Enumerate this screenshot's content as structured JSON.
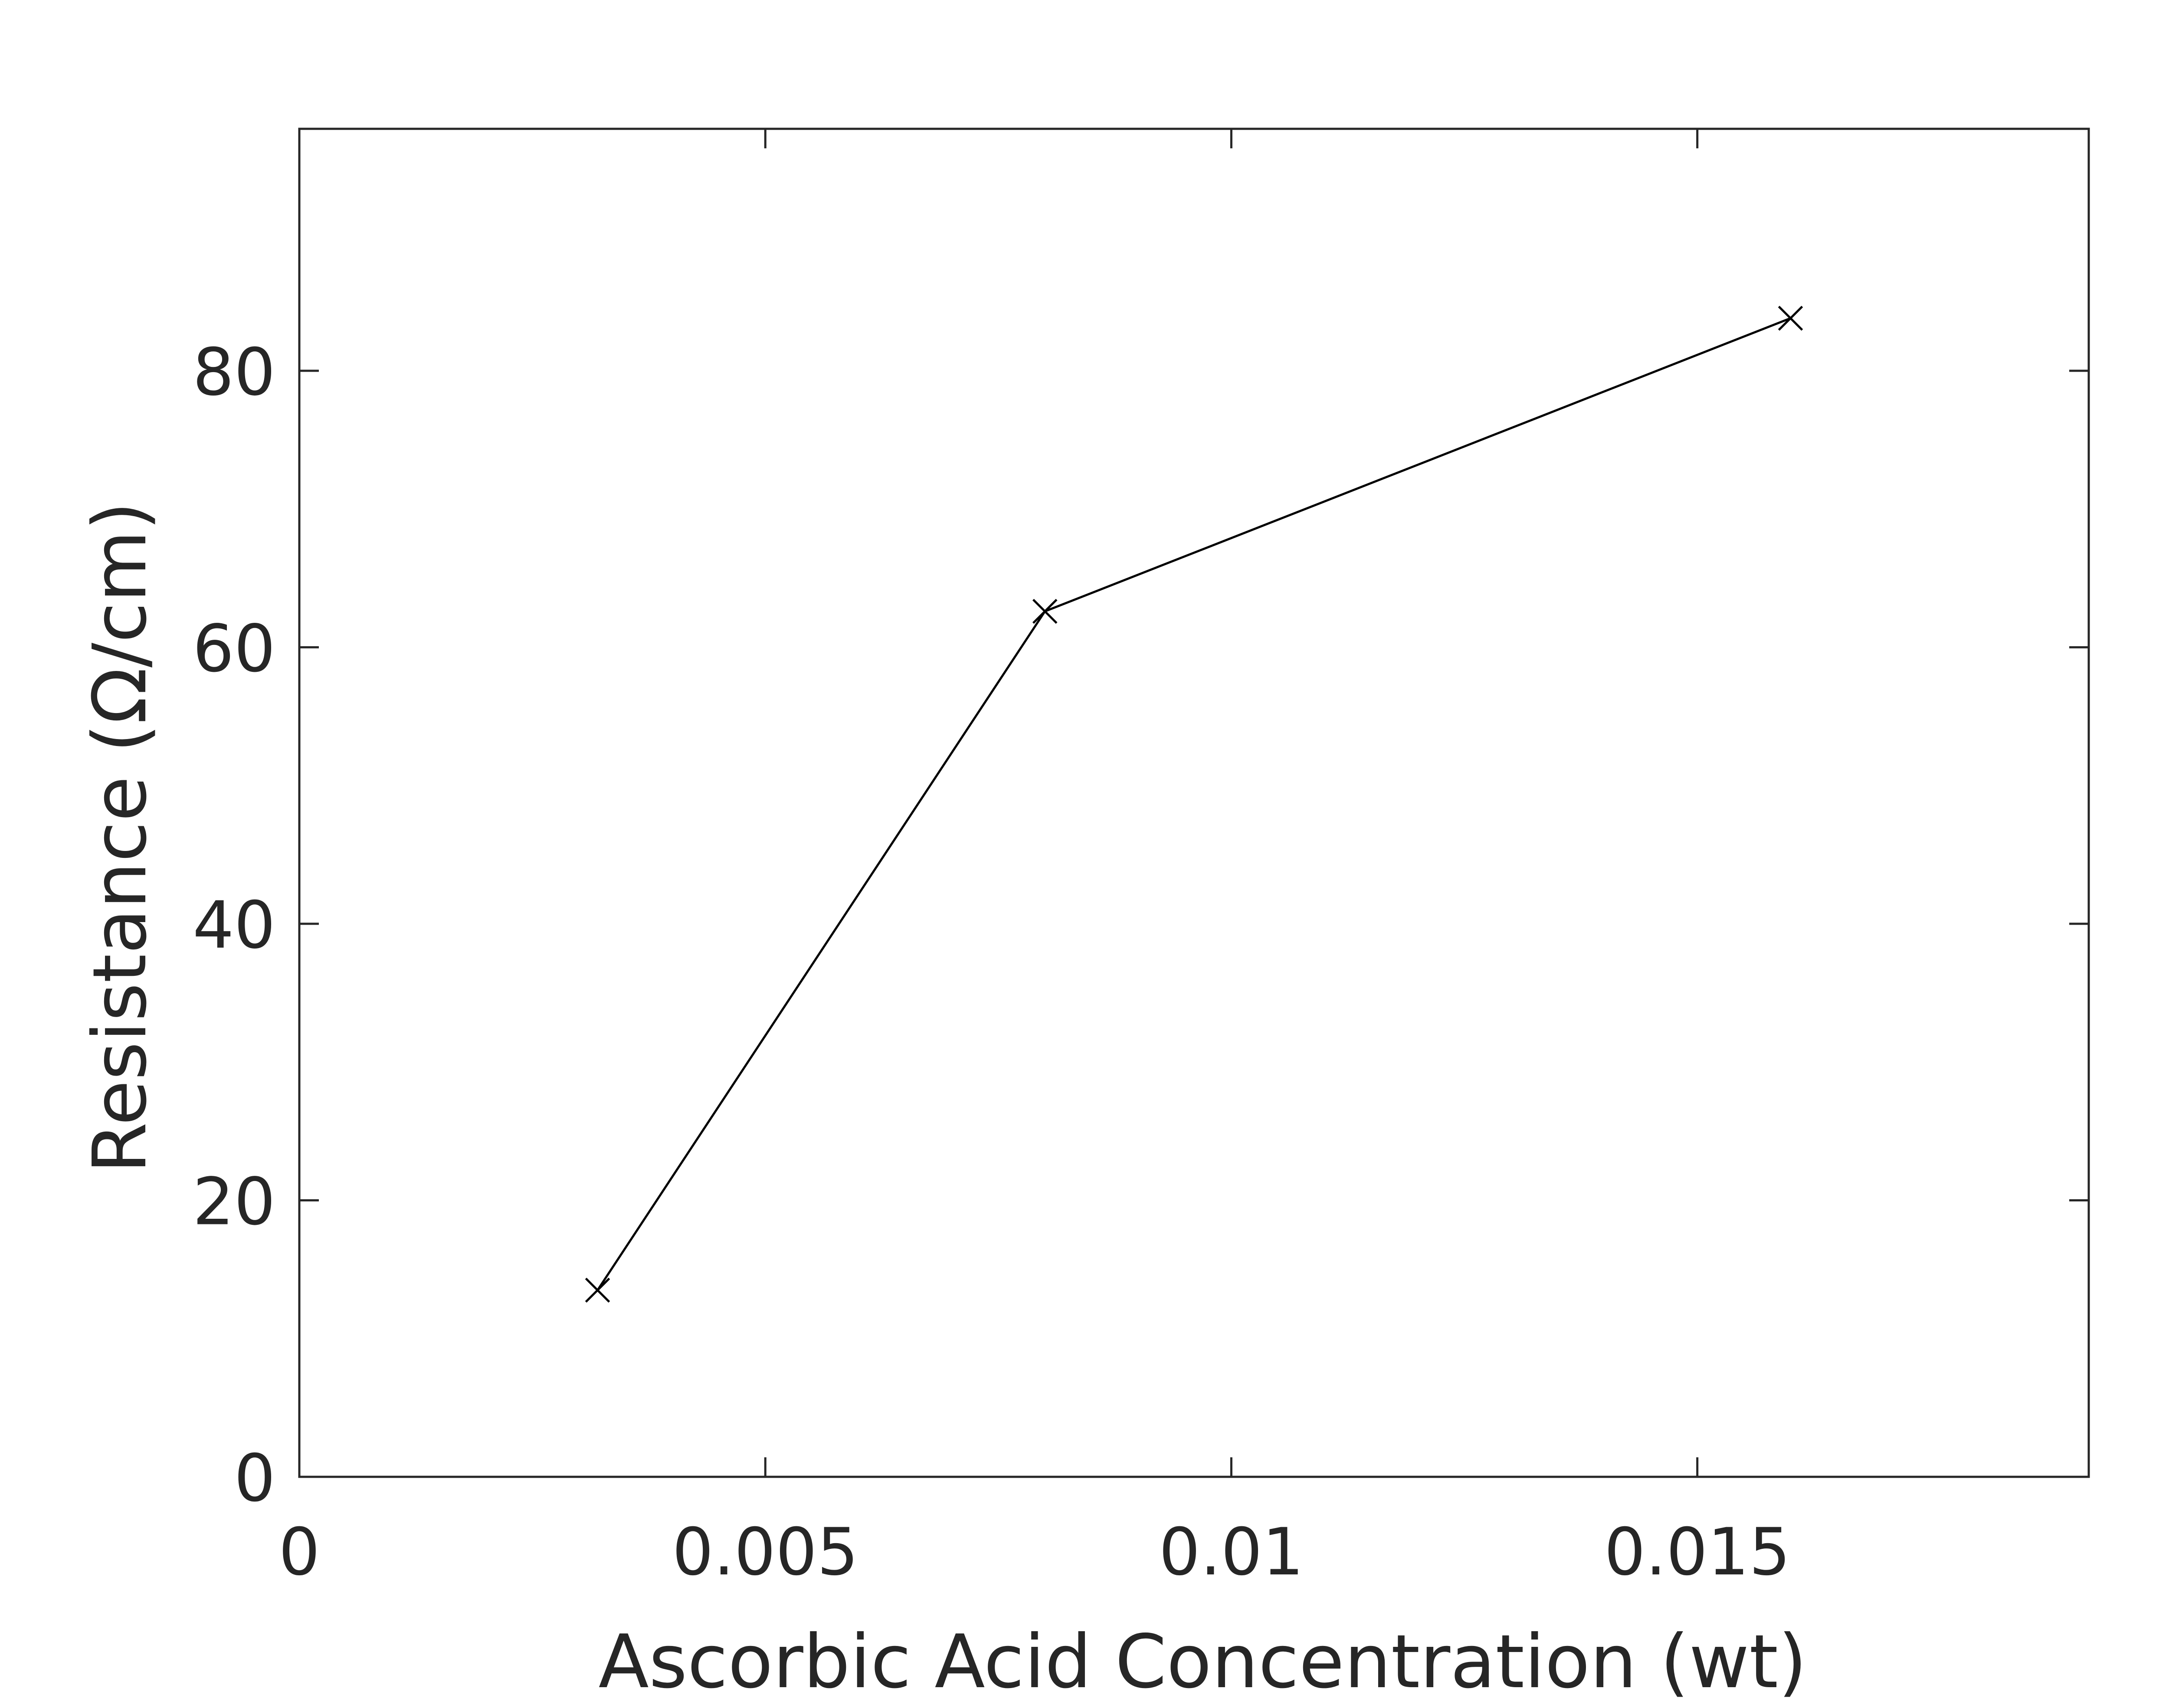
{
  "chart_data": {
    "type": "line",
    "title": "",
    "xlabel": "Ascorbic Acid Concentration (wt)",
    "ylabel": "Resistance (Ω/cm)",
    "xlim": [
      0,
      0.0192
    ],
    "ylim": [
      0,
      97.5
    ],
    "x_ticks": [
      0,
      0.005,
      0.01,
      0.015
    ],
    "x_tick_labels": [
      "0",
      "0.005",
      "0.01",
      "0.015"
    ],
    "y_ticks": [
      0,
      20,
      40,
      60,
      80
    ],
    "y_tick_labels": [
      "0",
      "20",
      "40",
      "60",
      "80"
    ],
    "grid": false,
    "legend": null,
    "series": [
      {
        "x": [
          0.0032,
          0.008,
          0.016
        ],
        "y": [
          13.5,
          62.6,
          83.8
        ],
        "marker": "x",
        "color": "#000000"
      }
    ]
  }
}
